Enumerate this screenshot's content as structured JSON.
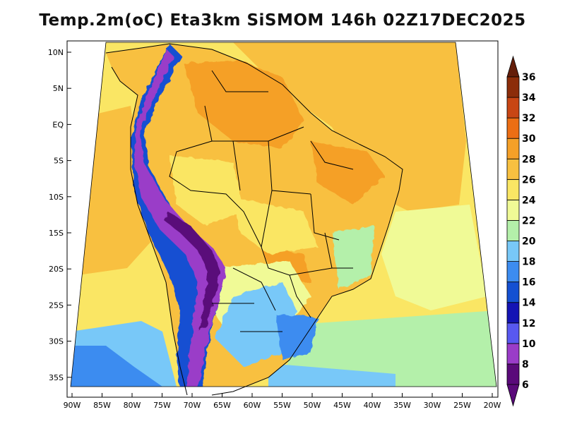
{
  "title": "Temp.2m(oC) Eta3km SiSMOM 146h 02Z17DEC2025",
  "colors": {
    "c6_8": "#5a0a7a",
    "c8_10": "#9a3cc8",
    "c10_12": "#5858f0",
    "c12_14": "#1414b4",
    "c14_16": "#1450d2",
    "c16_18": "#3c8cf0",
    "c18_20": "#78c8f8",
    "c20_22": "#b4f0aa",
    "c22_24": "#f0fa96",
    "c24_26": "#fae664",
    "c26_28": "#f8c040",
    "c28_30": "#f5a028",
    "c30_32": "#ec6e14",
    "c32_34": "#c84614",
    "c34_36": "#8c2d0a",
    "c36up": "#641e0a"
  },
  "colorbar": {
    "labels": [
      "6",
      "8",
      "10",
      "12",
      "14",
      "16",
      "18",
      "20",
      "22",
      "24",
      "26",
      "28",
      "30",
      "32",
      "34",
      "36"
    ],
    "colors": [
      "#5a0a7a",
      "#9a3cc8",
      "#5858f0",
      "#1414b4",
      "#1450d2",
      "#3c8cf0",
      "#78c8f8",
      "#b4f0aa",
      "#f0fa96",
      "#fae664",
      "#f8c040",
      "#f5a028",
      "#ec6e14",
      "#c84614",
      "#8c2d0a",
      "#641e0a"
    ]
  },
  "lat_labels": [
    "10N",
    "5N",
    "EQ",
    "5S",
    "10S",
    "15S",
    "20S",
    "25S",
    "30S",
    "35S"
  ],
  "lon_labels": [
    "90W",
    "85W",
    "80W",
    "75W",
    "70W",
    "65W",
    "60W",
    "55W",
    "50W",
    "45W",
    "40W",
    "35W",
    "30W",
    "25W",
    "20W"
  ]
}
